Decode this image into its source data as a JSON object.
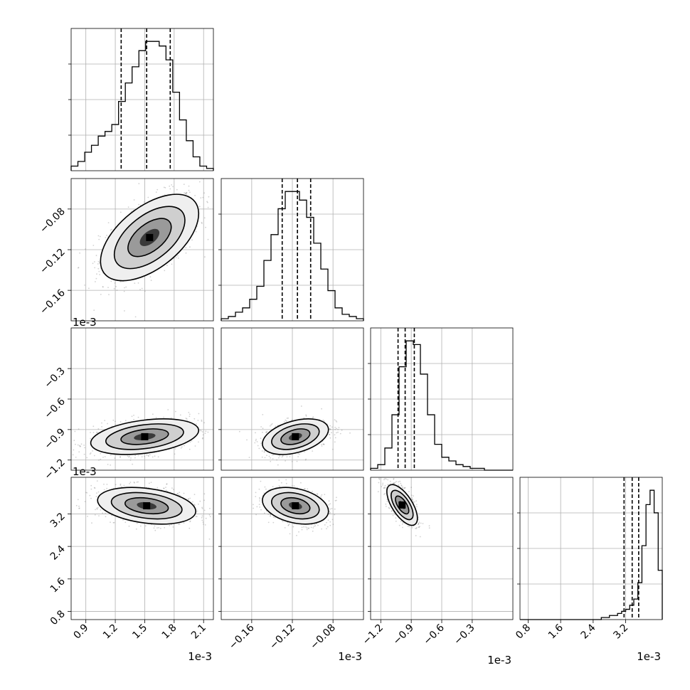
{
  "chart_data": {
    "type": "corner",
    "grid": true,
    "parameters": [
      {
        "offset_label": "1e-3",
        "range": [
          0.75,
          2.2
        ],
        "ticks": [
          "0.9",
          "1.2",
          "1.5",
          "1.8",
          "2.1"
        ],
        "tick_values": [
          0.9,
          1.2,
          1.5,
          1.8,
          2.1
        ]
      },
      {
        "offset_label": "1e-3",
        "range": [
          -0.19,
          -0.05
        ],
        "ticks": [
          "−0.16",
          "−0.12",
          "−0.08"
        ],
        "tick_values": [
          -0.16,
          -0.12,
          -0.08
        ]
      },
      {
        "offset_label": "1e-3",
        "range": [
          -1.3,
          0.1
        ],
        "ticks": [
          "−1.2",
          "−0.9",
          "−0.6",
          "−0.3"
        ],
        "tick_values": [
          -1.2,
          -0.9,
          -0.6,
          -0.3
        ]
      },
      {
        "offset_label": "1e-3",
        "range": [
          0.6,
          4.1
        ],
        "ticks": [
          "0.8",
          "1.6",
          "2.4",
          "3.2"
        ],
        "tick_values": [
          0.8,
          1.6,
          2.4,
          3.2
        ]
      }
    ],
    "histograms": [
      {
        "bins": [
          0.75,
          2.2
        ],
        "counts": [
          2,
          4,
          8,
          11,
          15,
          17,
          20,
          30,
          38,
          45,
          52,
          56,
          56,
          54,
          48,
          34,
          22,
          13,
          6,
          2,
          1
        ],
        "quantiles": [
          1.26,
          1.52,
          1.76
        ]
      },
      {
        "bins": [
          -0.19,
          -0.05
        ],
        "counts": [
          1,
          2,
          4,
          6,
          10,
          16,
          28,
          40,
          52,
          60,
          60,
          56,
          48,
          36,
          24,
          14,
          6,
          3,
          2,
          1
        ],
        "quantiles": [
          -0.13,
          -0.115,
          -0.102
        ]
      },
      {
        "bins": [
          -1.3,
          0.1
        ],
        "counts": [
          1,
          3,
          12,
          30,
          56,
          70,
          68,
          52,
          30,
          14,
          7,
          5,
          3,
          2,
          1,
          1,
          0,
          0,
          0,
          0
        ],
        "quantiles": [
          -1.03,
          -0.96,
          -0.87
        ]
      },
      {
        "bins": [
          0.6,
          4.1
        ],
        "counts": [
          0,
          0,
          0,
          0,
          0,
          0,
          0,
          0,
          0,
          0,
          0,
          0,
          0,
          0,
          0,
          0,
          0,
          0,
          0,
          0,
          1,
          1,
          2,
          2,
          3,
          4,
          5,
          7,
          10,
          18,
          36,
          56,
          63,
          52,
          24
        ],
        "quantiles": [
          3.16,
          3.36,
          3.52
        ]
      }
    ],
    "joint": [
      {
        "row": 1,
        "col": 0,
        "center": [
          1.55,
          -0.108
        ],
        "spread": [
          0.2,
          0.017
        ],
        "corr": 0.55
      },
      {
        "row": 2,
        "col": 0,
        "center": [
          1.5,
          -0.97
        ],
        "spread": [
          0.22,
          0.07
        ],
        "corr": 0.35
      },
      {
        "row": 2,
        "col": 1,
        "center": [
          -0.117,
          -0.97
        ],
        "spread": [
          0.013,
          0.07
        ],
        "corr": 0.4
      },
      {
        "row": 3,
        "col": 0,
        "center": [
          1.52,
          3.4
        ],
        "spread": [
          0.2,
          0.18
        ],
        "corr": -0.3
      },
      {
        "row": 3,
        "col": 1,
        "center": [
          -0.117,
          3.4
        ],
        "spread": [
          0.013,
          0.18
        ],
        "corr": -0.3
      },
      {
        "row": 3,
        "col": 2,
        "center": [
          -0.99,
          3.42
        ],
        "spread": [
          0.06,
          0.2
        ],
        "corr": -0.65
      }
    ]
  }
}
